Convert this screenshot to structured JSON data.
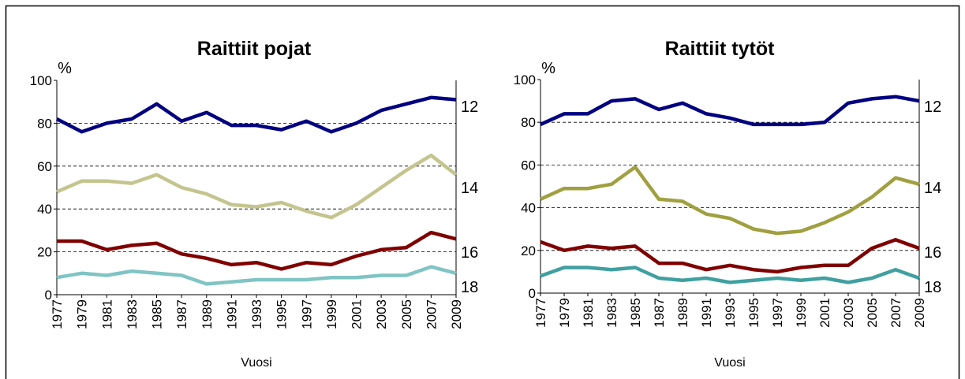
{
  "chart_data": [
    {
      "type": "line",
      "title": "Raittiit pojat",
      "ylabel": "%",
      "xlabel": "Vuosi",
      "categories": [
        "1977",
        "1979",
        "1981",
        "1983",
        "1985",
        "1987",
        "1989",
        "1991",
        "1993",
        "1995",
        "1997",
        "1999",
        "2001",
        "2003",
        "2005",
        "2007",
        "2009"
      ],
      "ylim": [
        0,
        100
      ],
      "yticks": [
        0,
        20,
        40,
        60,
        80,
        100
      ],
      "grid": true,
      "series": [
        {
          "name": "12",
          "color": "#000080",
          "values": [
            82,
            76,
            80,
            82,
            89,
            81,
            85,
            79,
            79,
            77,
            81,
            76,
            80,
            86,
            89,
            92,
            91
          ]
        },
        {
          "name": "14",
          "color": "#c4c48e",
          "values": [
            48,
            53,
            53,
            52,
            56,
            50,
            47,
            42,
            41,
            43,
            39,
            36,
            42,
            50,
            58,
            65,
            56
          ]
        },
        {
          "name": "16",
          "color": "#800000",
          "values": [
            25,
            25,
            21,
            23,
            24,
            19,
            17,
            14,
            15,
            12,
            15,
            14,
            18,
            21,
            22,
            29,
            26
          ]
        },
        {
          "name": "18",
          "color": "#80c4c4",
          "values": [
            8,
            10,
            9,
            11,
            10,
            9,
            5,
            6,
            7,
            7,
            7,
            8,
            8,
            9,
            9,
            13,
            10
          ]
        }
      ]
    },
    {
      "type": "line",
      "title": "Raittiit tytöt",
      "ylabel": "%",
      "xlabel": "Vuosi",
      "categories": [
        "1977",
        "1979",
        "1981",
        "1983",
        "1985",
        "1987",
        "1989",
        "1991",
        "1993",
        "1995",
        "1997",
        "1999",
        "2001",
        "2003",
        "2005",
        "2007",
        "2009"
      ],
      "ylim": [
        0,
        100
      ],
      "yticks": [
        0,
        20,
        40,
        60,
        80,
        100
      ],
      "grid": true,
      "series": [
        {
          "name": "12",
          "color": "#000080",
          "values": [
            79,
            84,
            84,
            90,
            91,
            86,
            89,
            84,
            82,
            79,
            79,
            79,
            80,
            89,
            91,
            92,
            90
          ]
        },
        {
          "name": "14",
          "color": "#a0a040",
          "values": [
            44,
            49,
            49,
            51,
            59,
            44,
            43,
            37,
            35,
            30,
            28,
            29,
            33,
            38,
            45,
            54,
            51
          ]
        },
        {
          "name": "16",
          "color": "#800000",
          "values": [
            24,
            20,
            22,
            21,
            22,
            14,
            14,
            11,
            13,
            11,
            10,
            12,
            13,
            13,
            21,
            25,
            21
          ]
        },
        {
          "name": "18",
          "color": "#40a0a0",
          "values": [
            8,
            12,
            12,
            11,
            12,
            7,
            6,
            7,
            5,
            6,
            7,
            6,
            7,
            5,
            7,
            11,
            7
          ]
        }
      ]
    }
  ]
}
